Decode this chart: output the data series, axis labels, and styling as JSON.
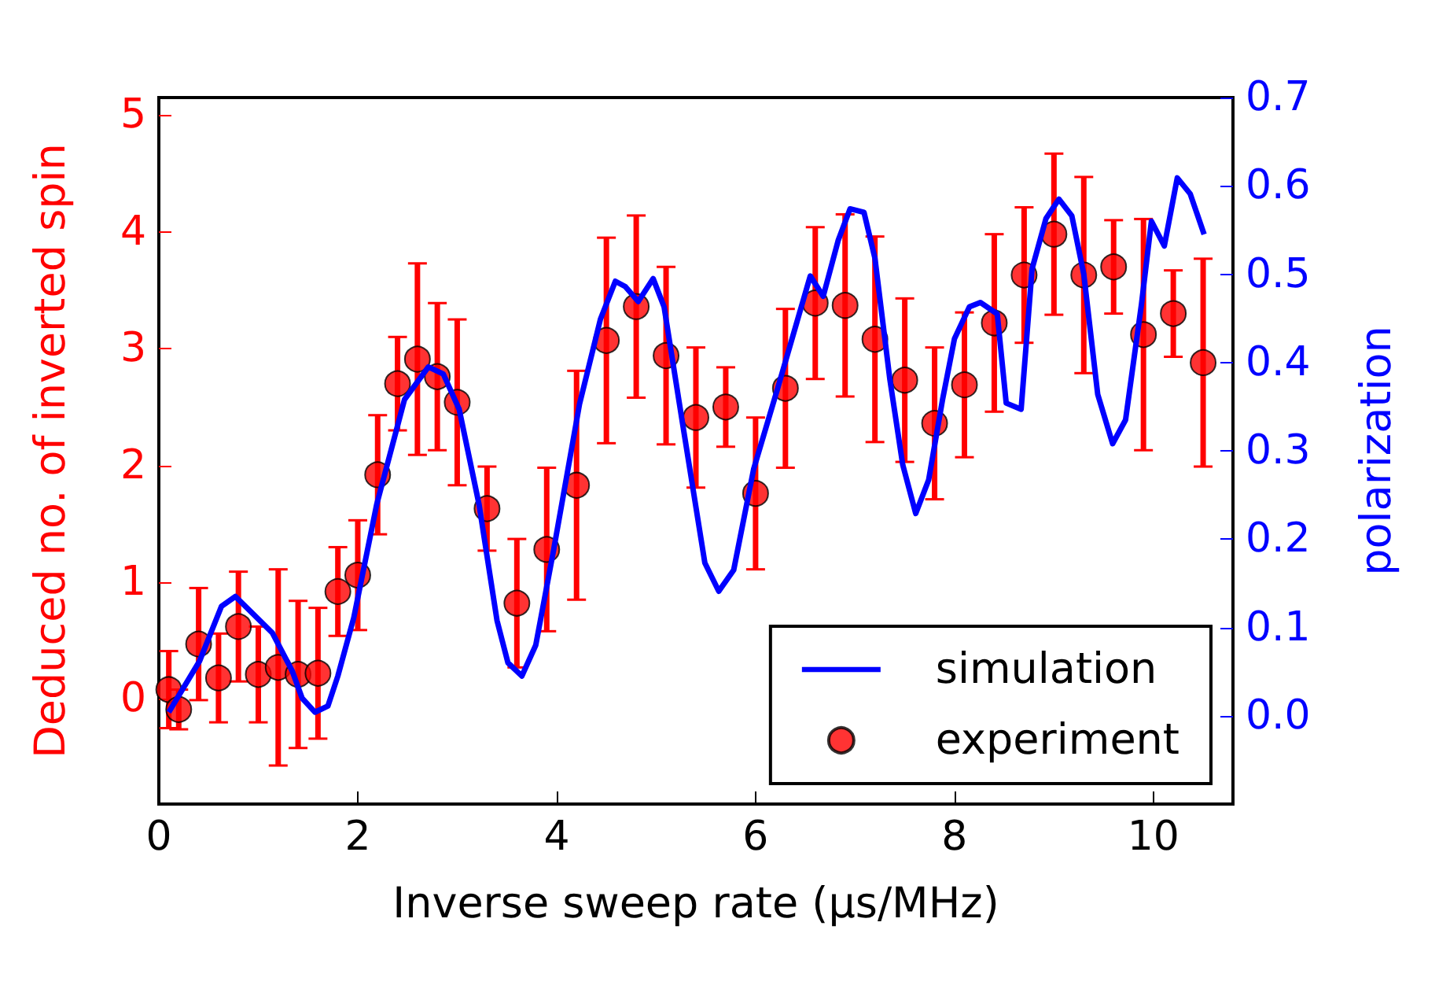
{
  "chart_data": {
    "type": "scatter",
    "xlabel": "Inverse sweep rate (μs/MHz)",
    "ylabel": "Deduced no. of inverted spin",
    "y2label": "polarization",
    "xlim": [
      0,
      10.8
    ],
    "xticks": [
      0,
      2,
      4,
      6,
      8,
      10
    ],
    "ylim": [
      -0.9,
      5.15
    ],
    "yticks": [
      0,
      1,
      2,
      3,
      4,
      5
    ],
    "y2lim": [
      -0.1,
      0.7
    ],
    "y2ticks": [
      {
        "value": 0,
        "label": "0.0"
      },
      {
        "value": 0.1,
        "label": "0.1"
      },
      {
        "value": 0.2,
        "label": "0.2"
      },
      {
        "value": 0.3,
        "label": "0.3"
      },
      {
        "value": 0.4,
        "label": "0.4"
      },
      {
        "value": 0.5,
        "label": "0.5"
      },
      {
        "value": 0.6,
        "label": "0.6"
      },
      {
        "value": 0.7,
        "label": "0.7"
      }
    ],
    "grid": false,
    "legend": "bottom right",
    "series": [
      {
        "name": "simulation",
        "type": "line",
        "axis": "y2",
        "color": "#0000ff",
        "marker": "none",
        "line_style": "solid",
        "x": [
          0.1,
          0.41,
          0.63,
          0.77,
          1.14,
          1.34,
          1.44,
          1.57,
          1.7,
          1.8,
          1.96,
          2.19,
          2.47,
          2.71,
          2.86,
          3.02,
          3.22,
          3.4,
          3.51,
          3.65,
          3.79,
          3.97,
          4.23,
          4.44,
          4.59,
          4.69,
          4.82,
          4.97,
          5.08,
          5.26,
          5.49,
          5.63,
          5.78,
          5.98,
          6.22,
          6.55,
          6.68,
          6.83,
          6.95,
          7.09,
          7.2,
          7.35,
          7.48,
          7.61,
          7.74,
          7.88,
          8.0,
          8.15,
          8.26,
          8.43,
          8.52,
          8.67,
          8.78,
          8.92,
          9.05,
          9.18,
          9.3,
          9.44,
          9.59,
          9.72,
          9.88,
          9.98,
          10.11,
          10.24,
          10.37,
          10.51
        ],
        "values": [
          0.004,
          0.062,
          0.124,
          0.135,
          0.094,
          0.051,
          0.02,
          0.004,
          0.011,
          0.045,
          0.111,
          0.239,
          0.358,
          0.395,
          0.387,
          0.347,
          0.239,
          0.108,
          0.06,
          0.045,
          0.08,
          0.188,
          0.353,
          0.449,
          0.492,
          0.486,
          0.469,
          0.495,
          0.463,
          0.335,
          0.173,
          0.141,
          0.165,
          0.279,
          0.37,
          0.498,
          0.475,
          0.538,
          0.574,
          0.57,
          0.518,
          0.381,
          0.284,
          0.229,
          0.267,
          0.358,
          0.427,
          0.463,
          0.468,
          0.455,
          0.354,
          0.347,
          0.506,
          0.563,
          0.585,
          0.566,
          0.5,
          0.364,
          0.308,
          0.335,
          0.466,
          0.56,
          0.532,
          0.609,
          0.591,
          0.545
        ]
      },
      {
        "name": "experiment",
        "color": "#ff0000",
        "marker": "circle",
        "x": [
          0.1,
          0.2,
          0.4,
          0.6,
          0.8,
          1.0,
          1.2,
          1.4,
          1.6,
          1.8,
          2.0,
          2.2,
          2.4,
          2.6,
          2.8,
          3.0,
          3.3,
          3.6,
          3.9,
          4.2,
          4.5,
          4.8,
          5.1,
          5.4,
          5.7,
          6.0,
          6.3,
          6.6,
          6.9,
          7.2,
          7.5,
          7.8,
          8.1,
          8.4,
          8.7,
          9.0,
          9.3,
          9.6,
          9.9,
          10.2,
          10.5
        ],
        "values": [
          0.08,
          -0.09,
          0.47,
          0.18,
          0.62,
          0.21,
          0.27,
          0.21,
          0.22,
          0.92,
          1.06,
          1.92,
          2.7,
          2.91,
          2.76,
          2.54,
          1.63,
          0.82,
          1.28,
          1.83,
          3.07,
          3.36,
          2.94,
          2.41,
          2.5,
          1.76,
          2.66,
          3.39,
          3.37,
          3.08,
          2.73,
          2.36,
          2.69,
          3.22,
          3.63,
          3.98,
          3.63,
          3.7,
          3.12,
          3.3,
          2.88
        ],
        "errors": [
          0.33,
          0.17,
          0.48,
          0.38,
          0.47,
          0.41,
          0.84,
          0.63,
          0.56,
          0.38,
          0.47,
          0.51,
          0.4,
          0.82,
          0.63,
          0.71,
          0.36,
          0.55,
          0.7,
          0.98,
          0.88,
          0.78,
          0.76,
          0.6,
          0.34,
          0.65,
          0.68,
          0.65,
          0.78,
          0.88,
          0.7,
          0.65,
          0.62,
          0.76,
          0.58,
          0.69,
          0.84,
          0.4,
          0.99,
          0.37,
          0.89
        ]
      }
    ]
  }
}
